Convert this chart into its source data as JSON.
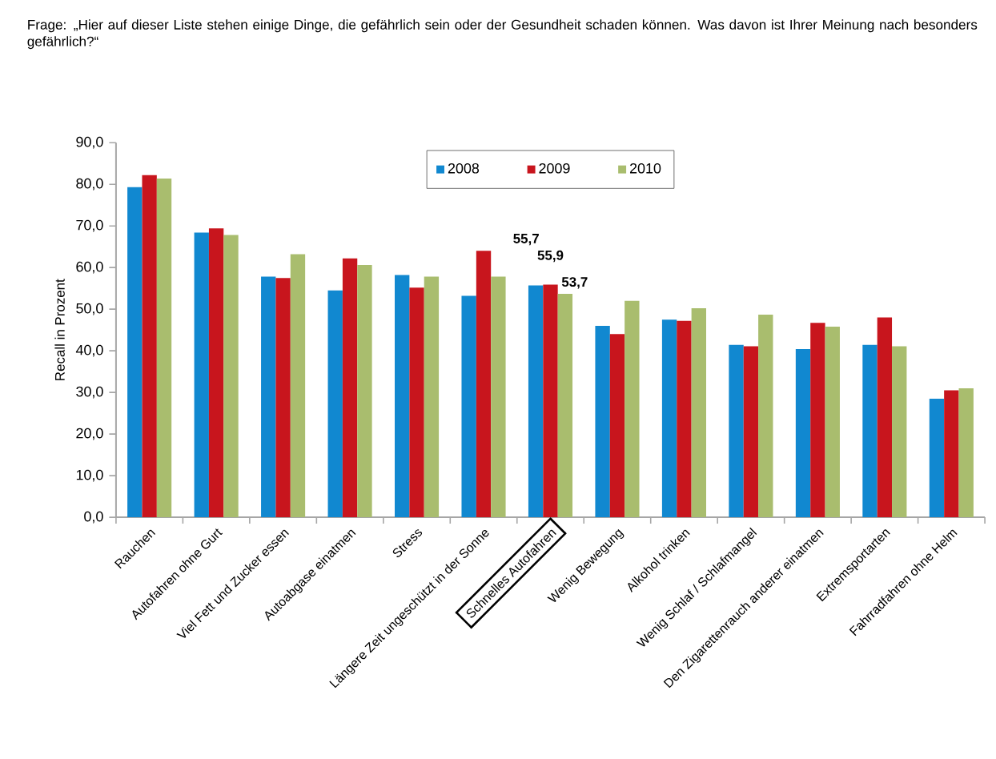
{
  "chart_data": {
    "type": "bar",
    "title": "Frage: „Hier auf dieser Liste stehen einige Dinge, die gefährlich sein oder der Gesundheit schaden können. Was davon ist Ihrer Meinung nach besonders gefährlich?“",
    "ylabel": "Recall in Prozent",
    "categories": [
      "Rauchen",
      "Autofahren ohne Gurt",
      "Viel Fett und Zucker essen",
      "Autoabgase einatmen",
      "Stress",
      "Längere Zeit ungeschützt in der Sonne",
      "Schnelles Autofahren",
      "Wenig Bewegung",
      "Alkohol trinken",
      "Wenig Schlaf / Schlafmangel",
      "Den Zigarettenrauch anderer einatmen",
      "Extremsportarten",
      "Fahrradfahren ohne Helm"
    ],
    "series": [
      {
        "name": "2008",
        "color": "#1188d0",
        "values": [
          79.3,
          68.4,
          57.8,
          54.5,
          58.2,
          53.2,
          55.7,
          46.0,
          47.5,
          41.4,
          40.4,
          41.4,
          28.5
        ],
        "value_labels": [
          null,
          null,
          null,
          null,
          null,
          null,
          "55,7",
          null,
          null,
          null,
          null,
          null,
          null
        ]
      },
      {
        "name": "2009",
        "color": "#c8151d",
        "values": [
          82.2,
          69.4,
          57.5,
          62.2,
          55.2,
          64.0,
          55.9,
          44.0,
          47.2,
          41.1,
          46.7,
          48.0,
          30.5
        ],
        "value_labels": [
          null,
          null,
          null,
          null,
          null,
          null,
          "55,9",
          null,
          null,
          null,
          null,
          null,
          null
        ]
      },
      {
        "name": "2010",
        "color": "#a9bd6e",
        "values": [
          81.4,
          67.8,
          63.2,
          60.6,
          57.8,
          57.8,
          53.7,
          52.0,
          50.2,
          48.7,
          45.8,
          41.1,
          31.0
        ],
        "value_labels": [
          null,
          null,
          null,
          null,
          null,
          null,
          "53,7",
          null,
          null,
          null,
          null,
          null,
          null
        ]
      }
    ],
    "ylim": [
      0,
      90
    ],
    "yticks": [
      {
        "value": 0,
        "label": "0,0"
      },
      {
        "value": 10,
        "label": "10,0"
      },
      {
        "value": 20,
        "label": "20,0"
      },
      {
        "value": 30,
        "label": "30,0"
      },
      {
        "value": 40,
        "label": "40,0"
      },
      {
        "value": 50,
        "label": "50,0"
      },
      {
        "value": 60,
        "label": "60,0"
      },
      {
        "value": 70,
        "label": "70,0"
      },
      {
        "value": 80,
        "label": "80,0"
      },
      {
        "value": 90,
        "label": "90,0"
      }
    ],
    "legend": "top"
  }
}
